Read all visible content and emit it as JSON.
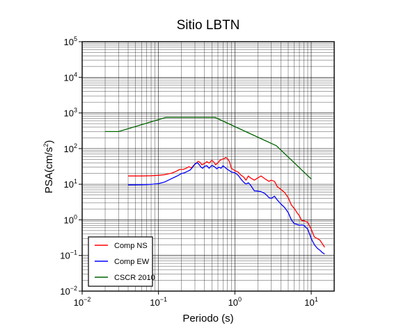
{
  "chart_data": {
    "type": "line",
    "title": "Sitio LBTN",
    "xlabel": "Periodo (s)",
    "ylabel_base": "PSA(cm/s",
    "ylabel_sup": "2",
    "ylabel_tail": ")",
    "xscale": "log",
    "yscale": "log",
    "xlim": [
      0.01,
      20
    ],
    "ylim": [
      0.01,
      100000
    ],
    "grid": true,
    "legend_position": "bottom-left",
    "x_ticks": [
      {
        "base": "10",
        "exp": "−2",
        "value": 0.01
      },
      {
        "base": "10",
        "exp": "−1",
        "value": 0.1
      },
      {
        "base": "10",
        "exp": "0",
        "value": 1
      },
      {
        "base": "10",
        "exp": "1",
        "value": 10
      }
    ],
    "y_ticks": [
      {
        "base": "10",
        "exp": "−2",
        "value": 0.01
      },
      {
        "base": "10",
        "exp": "−1",
        "value": 0.1
      },
      {
        "base": "10",
        "exp": "0",
        "value": 1
      },
      {
        "base": "10",
        "exp": "1",
        "value": 10
      },
      {
        "base": "10",
        "exp": "2",
        "value": 100
      },
      {
        "base": "10",
        "exp": "3",
        "value": 1000
      },
      {
        "base": "10",
        "exp": "4",
        "value": 10000
      },
      {
        "base": "10",
        "exp": "5",
        "value": 100000
      }
    ],
    "series": [
      {
        "name": "Comp NS",
        "color": "#ff0000",
        "points": [
          [
            0.04,
            17.0
          ],
          [
            0.06,
            17.0
          ],
          [
            0.08,
            17.3
          ],
          [
            0.1,
            17.8
          ],
          [
            0.12,
            18.5
          ],
          [
            0.15,
            20.5
          ],
          [
            0.17,
            23
          ],
          [
            0.19,
            26
          ],
          [
            0.21,
            26
          ],
          [
            0.23,
            28
          ],
          [
            0.25,
            31
          ],
          [
            0.27,
            29
          ],
          [
            0.29,
            34
          ],
          [
            0.31,
            38
          ],
          [
            0.33,
            44
          ],
          [
            0.35,
            41
          ],
          [
            0.37,
            35
          ],
          [
            0.4,
            38
          ],
          [
            0.43,
            43
          ],
          [
            0.46,
            39
          ],
          [
            0.5,
            47
          ],
          [
            0.53,
            42
          ],
          [
            0.56,
            35
          ],
          [
            0.6,
            40
          ],
          [
            0.64,
            47
          ],
          [
            0.68,
            50
          ],
          [
            0.72,
            52
          ],
          [
            0.76,
            56
          ],
          [
            0.8,
            52
          ],
          [
            0.85,
            43
          ],
          [
            0.9,
            28
          ],
          [
            1.0,
            24
          ],
          [
            1.1,
            22
          ],
          [
            1.2,
            18
          ],
          [
            1.3,
            16
          ],
          [
            1.4,
            13
          ],
          [
            1.5,
            17
          ],
          [
            1.6,
            15
          ],
          [
            1.8,
            13
          ],
          [
            2.0,
            15
          ],
          [
            2.2,
            17
          ],
          [
            2.5,
            14
          ],
          [
            2.8,
            12
          ],
          [
            3.0,
            13
          ],
          [
            3.3,
            12
          ],
          [
            3.6,
            8.5
          ],
          [
            4.0,
            7.2
          ],
          [
            4.5,
            5.8
          ],
          [
            5.0,
            4.2
          ],
          [
            5.5,
            2.6
          ],
          [
            6.0,
            2.1
          ],
          [
            6.5,
            1.6
          ],
          [
            7.0,
            1.3
          ],
          [
            7.5,
            0.95
          ],
          [
            8.0,
            0.95
          ],
          [
            9.0,
            0.85
          ],
          [
            10.0,
            0.55
          ],
          [
            11.0,
            0.33
          ],
          [
            13.0,
            0.27
          ],
          [
            15.0,
            0.17
          ]
        ]
      },
      {
        "name": "Comp EW",
        "color": "#0000ff",
        "points": [
          [
            0.04,
            9.6
          ],
          [
            0.06,
            9.7
          ],
          [
            0.08,
            9.9
          ],
          [
            0.1,
            10.4
          ],
          [
            0.12,
            11.5
          ],
          [
            0.14,
            13.5
          ],
          [
            0.16,
            15.5
          ],
          [
            0.18,
            17.5
          ],
          [
            0.2,
            20
          ],
          [
            0.22,
            21
          ],
          [
            0.24,
            23
          ],
          [
            0.26,
            25
          ],
          [
            0.28,
            30
          ],
          [
            0.3,
            37
          ],
          [
            0.32,
            40
          ],
          [
            0.34,
            36
          ],
          [
            0.36,
            30
          ],
          [
            0.38,
            28
          ],
          [
            0.4,
            32
          ],
          [
            0.43,
            33
          ],
          [
            0.46,
            28
          ],
          [
            0.5,
            34
          ],
          [
            0.54,
            31
          ],
          [
            0.58,
            27
          ],
          [
            0.62,
            30
          ],
          [
            0.66,
            28
          ],
          [
            0.7,
            33
          ],
          [
            0.75,
            29
          ],
          [
            0.8,
            26
          ],
          [
            0.85,
            24
          ],
          [
            0.9,
            22
          ],
          [
            1.0,
            21
          ],
          [
            1.1,
            18
          ],
          [
            1.2,
            14
          ],
          [
            1.3,
            11.5
          ],
          [
            1.4,
            10
          ],
          [
            1.5,
            11
          ],
          [
            1.6,
            9.5
          ],
          [
            1.8,
            6.5
          ],
          [
            2.0,
            6.4
          ],
          [
            2.2,
            6.2
          ],
          [
            2.5,
            5.4
          ],
          [
            2.8,
            4.2
          ],
          [
            3.0,
            4.0
          ],
          [
            3.3,
            4.6
          ],
          [
            3.6,
            3.6
          ],
          [
            4.0,
            2.8
          ],
          [
            4.5,
            2.2
          ],
          [
            5.0,
            1.6
          ],
          [
            5.5,
            1.0
          ],
          [
            6.0,
            0.78
          ],
          [
            6.5,
            0.75
          ],
          [
            7.0,
            0.7
          ],
          [
            7.5,
            0.72
          ],
          [
            8.0,
            0.7
          ],
          [
            9.0,
            0.55
          ],
          [
            10.0,
            0.3
          ],
          [
            11.0,
            0.2
          ],
          [
            12.0,
            0.16
          ],
          [
            13.0,
            0.14
          ],
          [
            14.0,
            0.12
          ],
          [
            15.0,
            0.11
          ]
        ]
      },
      {
        "name": "CSCR 2010",
        "color": "#006400",
        "points": [
          [
            0.02,
            300
          ],
          [
            0.03,
            300
          ],
          [
            0.125,
            750
          ],
          [
            0.55,
            750
          ],
          [
            3.5,
            120
          ],
          [
            10.0,
            14
          ]
        ]
      }
    ]
  }
}
